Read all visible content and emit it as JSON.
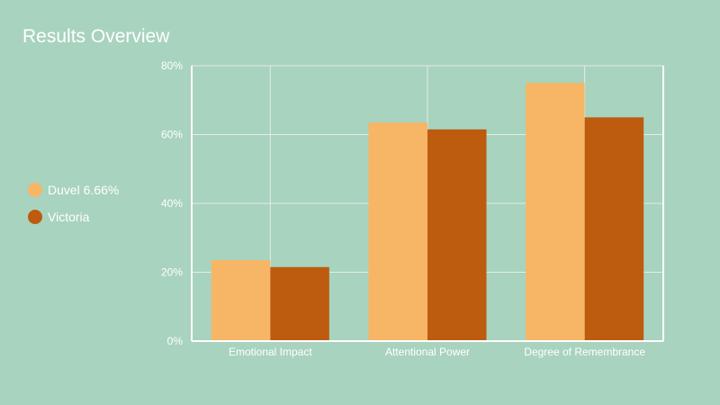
{
  "chart_data": {
    "type": "bar",
    "title": "Results Overview",
    "categories": [
      "Emotional Impact",
      "Attentional Power",
      "Degree of Remembrance"
    ],
    "series": [
      {
        "name": "Duvel 6.66%",
        "color": "#f6b665",
        "values": [
          23.5,
          63.5,
          75
        ]
      },
      {
        "name": "Victoria",
        "color": "#bd5b0e",
        "values": [
          21.5,
          61.5,
          65
        ]
      }
    ],
    "yticks": [
      "0%",
      "20%",
      "40%",
      "60%",
      "80%"
    ],
    "ylim": [
      0,
      80
    ],
    "grid": true,
    "legend_position": "left",
    "background": "#a8d3bf"
  }
}
